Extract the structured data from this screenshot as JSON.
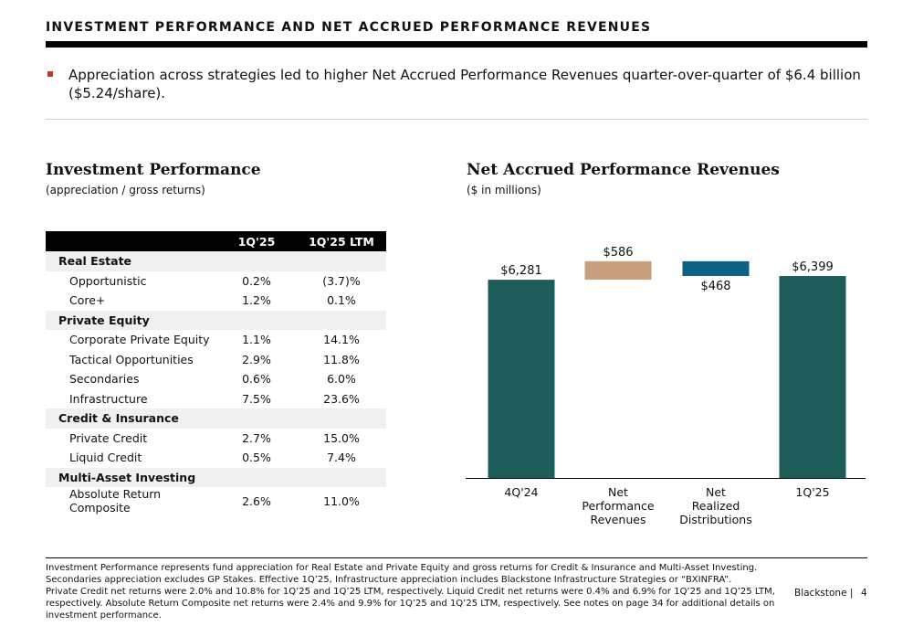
{
  "header": {
    "title": "INVESTMENT PERFORMANCE AND NET ACCRUED PERFORMANCE REVENUES"
  },
  "bullet": {
    "text": "Appreciation across strategies led to higher Net Accrued Performance Revenues quarter-over-quarter of $6.4 billion ($5.24/share)."
  },
  "left": {
    "title": "Investment Performance",
    "subtitle": "(appreciation / gross returns)",
    "table": {
      "columns": [
        "",
        "1Q'25",
        "1Q'25 LTM"
      ],
      "groups": [
        {
          "name": "Real Estate",
          "rows": [
            {
              "label": "Opportunistic",
              "q": "0.2%",
              "ltm": "(3.7)%"
            },
            {
              "label": "Core+",
              "q": "1.2%",
              "ltm": "0.1%"
            }
          ]
        },
        {
          "name": "Private Equity",
          "rows": [
            {
              "label": "Corporate Private Equity",
              "q": "1.1%",
              "ltm": "14.1%"
            },
            {
              "label": "Tactical Opportunities",
              "q": "2.9%",
              "ltm": "11.8%"
            },
            {
              "label": "Secondaries",
              "q": "0.6%",
              "ltm": "6.0%"
            },
            {
              "label": "Infrastructure",
              "q": "7.5%",
              "ltm": "23.6%"
            }
          ]
        },
        {
          "name": "Credit & Insurance",
          "rows": [
            {
              "label": "Private Credit",
              "q": "2.7%",
              "ltm": "15.0%"
            },
            {
              "label": "Liquid Credit",
              "q": "0.5%",
              "ltm": "7.4%"
            }
          ]
        },
        {
          "name": "Multi-Asset Investing",
          "rows": [
            {
              "label": "Absolute Return Composite",
              "q": "2.6%",
              "ltm": "11.0%"
            }
          ]
        }
      ]
    }
  },
  "right": {
    "title": "Net Accrued Performance Revenues",
    "subtitle": "($ in millions)"
  },
  "chart_data": {
    "type": "bar",
    "subtype": "waterfall",
    "title": "Net Accrued Performance Revenues",
    "subtitle": "($ in millions)",
    "categories": [
      [
        "4Q'24"
      ],
      [
        "Net",
        "Performance",
        "Revenues"
      ],
      [
        "Net",
        "Realized",
        "Distributions"
      ],
      [
        "1Q'25"
      ]
    ],
    "steps": [
      {
        "kind": "total",
        "value": 6281,
        "label": "$6,281",
        "color": "#1e5c5a"
      },
      {
        "kind": "increase",
        "value": 586,
        "label": "$586",
        "color": "#c8a07e"
      },
      {
        "kind": "decrease",
        "value": -468,
        "label": "$468",
        "color": "#0b6285"
      },
      {
        "kind": "total",
        "value": 6399,
        "label": "$6,399",
        "color": "#1e5c5a"
      }
    ],
    "grid": false
  },
  "footnote": {
    "lines": [
      "Investment Performance represents fund appreciation for Real Estate and Private Equity and gross returns for Credit & Insurance and Multi-Asset Investing.",
      "Secondaries appreciation excludes GP Stakes. Effective 1Q’25, Infrastructure appreciation includes Blackstone Infrastructure Strategies or “BXINFRA”.",
      "Private Credit net returns were 2.0% and 10.8% for 1Q’25 and 1Q’25 LTM, respectively. Liquid Credit net returns were 0.4% and 6.9% for 1Q’25 and 1Q’25 LTM, respectively. Absolute Return Composite net returns were 2.4% and 9.9% for 1Q’25 and 1Q’25 LTM, respectively. See notes on page 34 for additional details on investment performance."
    ]
  },
  "footer": {
    "brand": "Blackstone |",
    "page": "4"
  }
}
